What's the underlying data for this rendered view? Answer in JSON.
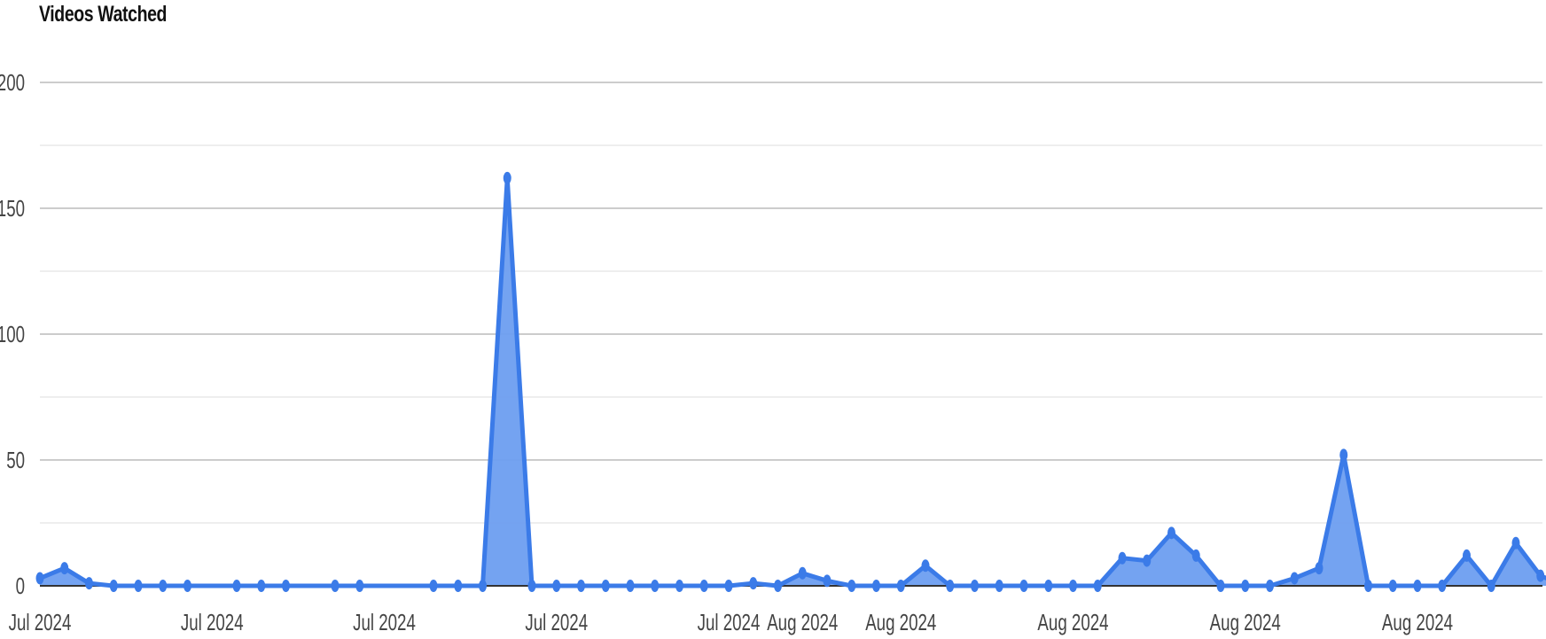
{
  "chart_data": {
    "type": "area",
    "title": "Videos Watched",
    "xlabel": "",
    "ylabel": "",
    "ylim": [
      0,
      200
    ],
    "y_ticks": [
      0,
      50,
      100,
      150,
      200
    ],
    "minor_gridlines": true,
    "legend": "none",
    "colors": {
      "line": "#3b7be8",
      "fill": "#6d9ef0",
      "grid_major": "#cccccc",
      "grid_minor": "#e9e9e9"
    },
    "x_tick_labels": [
      {
        "index": 0,
        "label": "Jul 2024"
      },
      {
        "index": 7,
        "label": "Jul 2024"
      },
      {
        "index": 14,
        "label": "Jul 2024"
      },
      {
        "index": 21,
        "label": "Jul 2024"
      },
      {
        "index": 28,
        "label": "Jul 2024"
      },
      {
        "index": 31,
        "label": "Aug 2024"
      },
      {
        "index": 35,
        "label": "Aug 2024"
      },
      {
        "index": 42,
        "label": "Aug 2024"
      },
      {
        "index": 49,
        "label": "Aug 2024"
      },
      {
        "index": 56,
        "label": "Aug 2024"
      }
    ],
    "series": [
      {
        "values": [
          3,
          7,
          1,
          0,
          0,
          0,
          0,
          null,
          0,
          0,
          0,
          null,
          0,
          0,
          null,
          null,
          0,
          0,
          0,
          162,
          0,
          0,
          0,
          0,
          0,
          0,
          0,
          0,
          0,
          1,
          0,
          5,
          2,
          0,
          0,
          0,
          8,
          0,
          0,
          0,
          0,
          0,
          0,
          0,
          11,
          10,
          21,
          12,
          0,
          0,
          0,
          3,
          7,
          52,
          0,
          0,
          0,
          0,
          12,
          0,
          17,
          4,
          0,
          0
        ]
      }
    ]
  }
}
